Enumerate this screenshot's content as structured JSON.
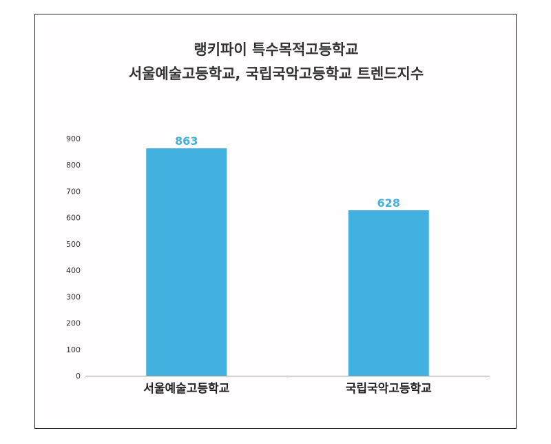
{
  "chart_data": {
    "type": "bar",
    "title_lines": [
      "랭키파이 특수목적고등학교",
      "서울예술고등학교, 국립국악고등학교 트렌드지수"
    ],
    "categories": [
      "서울예술고등학교",
      "국립국악고등학교"
    ],
    "values": [
      863,
      628
    ],
    "data_labels": [
      "863",
      "628"
    ],
    "ylim": [
      0,
      900
    ],
    "yticks": [
      "0",
      "100",
      "200",
      "300",
      "400",
      "500",
      "600",
      "700",
      "800",
      "900"
    ],
    "grid": false,
    "legend": "none",
    "colors": {
      "bar": "#42b1e0",
      "data_label": "#42b1e0",
      "axis": "#999999",
      "tick_text": "#333333",
      "category_text": "#222222"
    }
  }
}
